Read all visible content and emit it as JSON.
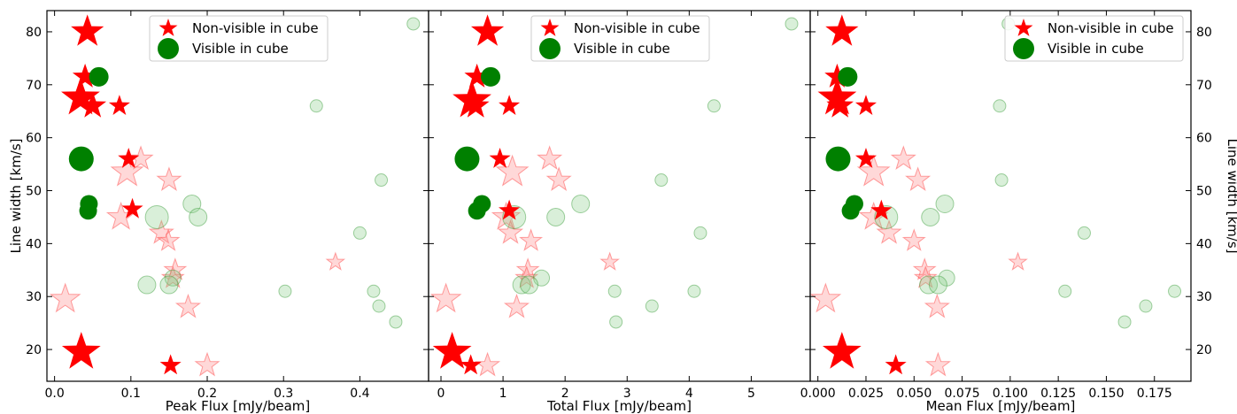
{
  "chart_data": [
    {
      "type": "scatter",
      "xlabel": "Peak Flux [mJy/beam]",
      "ylabel": "Line width [km/s]",
      "xlim": [
        -0.01,
        0.49
      ],
      "ylim": [
        14,
        84
      ],
      "xticks": [
        0.0,
        0.1,
        0.2,
        0.3,
        0.4
      ],
      "xtick_labels": [
        "0.0",
        "0.1",
        "0.2",
        "0.3",
        "0.4"
      ],
      "yticks": [
        20,
        30,
        40,
        50,
        60,
        70,
        80
      ],
      "ytick_labels": [
        "20",
        "30",
        "40",
        "50",
        "60",
        "70",
        "80"
      ],
      "legend": {
        "position": "top-center",
        "entries": [
          "Non-visible in cube",
          "Visible in cube"
        ]
      },
      "series": [
        {
          "name": "Non-visible in cube",
          "marker": "star",
          "color": "#ff0000",
          "x": [
            0.043,
            0.04,
            0.034,
            0.05,
            0.085,
            0.097,
            0.102,
            0.035,
            0.152
          ],
          "y": [
            80,
            71.5,
            67.5,
            66,
            66,
            56,
            46.5,
            19.5,
            17
          ],
          "size": [
            17,
            13,
            20,
            14,
            11,
            11,
            11,
            20,
            11
          ]
        },
        {
          "name": "Visible in cube",
          "marker": "circle",
          "color": "#008000",
          "x": [
            0.058,
            0.035,
            0.045,
            0.044
          ],
          "y": [
            71.5,
            56,
            47.5,
            46.2
          ],
          "size": [
            11,
            14,
            10,
            10
          ]
        },
        {
          "name": "",
          "marker": "star",
          "color": "#ff9999",
          "faded": true,
          "x": [
            0.113,
            0.095,
            0.15,
            0.087,
            0.14,
            0.149,
            0.158,
            0.155,
            0.014,
            0.175,
            0.2,
            0.368
          ],
          "y": [
            56,
            53.5,
            52,
            45,
            42,
            40.5,
            35,
            33.5,
            29.5,
            28,
            17,
            36.5
          ],
          "size": [
            12,
            16,
            12,
            14,
            12,
            11,
            11,
            11,
            15,
            12,
            12,
            9
          ]
        },
        {
          "name": "",
          "marker": "circle",
          "color": "#88cc88",
          "faded": true,
          "x": [
            0.47,
            0.343,
            0.428,
            0.18,
            0.188,
            0.134,
            0.4,
            0.155,
            0.121,
            0.15,
            0.302,
            0.418,
            0.425,
            0.447
          ],
          "y": [
            81.5,
            66,
            52,
            47.5,
            45,
            45,
            42,
            33.5,
            32.2,
            32.2,
            31,
            31,
            28.2,
            25.2
          ],
          "size": [
            7,
            7,
            7,
            10,
            10,
            13,
            7,
            9,
            10,
            10,
            7,
            7,
            7,
            7
          ]
        }
      ]
    },
    {
      "type": "scatter",
      "xlabel": "Total Flux [mJy/beam]",
      "ylabel": "",
      "xlim": [
        -0.2,
        5.95
      ],
      "ylim": [
        14,
        84
      ],
      "xticks": [
        0,
        1,
        2,
        3,
        4,
        5
      ],
      "xtick_labels": [
        "0",
        "1",
        "2",
        "3",
        "4",
        "5"
      ],
      "legend": {
        "position": "top-center",
        "entries": [
          "Non-visible in cube",
          "Visible in cube"
        ]
      },
      "series": [
        {
          "name": "Non-visible in cube",
          "marker": "star",
          "color": "#ff0000",
          "x": [
            0.75,
            0.58,
            0.5,
            0.56,
            1.1,
            0.95,
            1.1,
            0.18,
            0.48
          ],
          "y": [
            80,
            71.5,
            67,
            66,
            66,
            56,
            46.2,
            19.5,
            17
          ],
          "size": [
            17,
            13,
            20,
            14,
            11,
            11,
            11,
            20,
            11
          ]
        },
        {
          "name": "Visible in cube",
          "marker": "circle",
          "color": "#008000",
          "x": [
            0.8,
            0.42,
            0.66,
            0.58
          ],
          "y": [
            71.5,
            56,
            47.5,
            46.2
          ],
          "size": [
            11,
            14,
            10,
            10
          ]
        },
        {
          "name": "",
          "marker": "star",
          "color": "#ff9999",
          "faded": true,
          "x": [
            1.75,
            1.15,
            1.9,
            1.05,
            1.12,
            1.45,
            1.4,
            1.38,
            0.08,
            1.22,
            0.75,
            2.72
          ],
          "y": [
            56,
            53.5,
            52,
            45,
            42,
            40.5,
            35,
            33.5,
            29.5,
            28,
            17,
            36.5
          ],
          "size": [
            12,
            16,
            12,
            14,
            12,
            11,
            11,
            11,
            15,
            12,
            12,
            9
          ]
        },
        {
          "name": "",
          "marker": "circle",
          "color": "#88cc88",
          "faded": true,
          "x": [
            5.65,
            4.4,
            3.55,
            2.25,
            1.85,
            1.18,
            4.18,
            1.62,
            1.3,
            1.42,
            2.8,
            4.08,
            3.4,
            2.82
          ],
          "y": [
            81.5,
            66,
            52,
            47.5,
            45,
            45,
            42,
            33.5,
            32.2,
            32.2,
            31,
            31,
            28.2,
            25.2
          ],
          "size": [
            7,
            7,
            7,
            10,
            10,
            13,
            7,
            9,
            10,
            10,
            7,
            7,
            7,
            7
          ]
        }
      ]
    },
    {
      "type": "scatter",
      "xlabel": "Mean Flux [mJy/beam]",
      "ylabel": "Line width [km/s]",
      "xlim": [
        -0.004,
        0.194
      ],
      "ylim": [
        14,
        84
      ],
      "xticks": [
        0.0,
        0.025,
        0.05,
        0.075,
        0.1,
        0.125,
        0.15,
        0.175
      ],
      "xtick_labels": [
        "0.000",
        "0.025",
        "0.050",
        "0.075",
        "0.100",
        "0.125",
        "0.150",
        "0.175"
      ],
      "yticks": [
        20,
        30,
        40,
        50,
        60,
        70,
        80
      ],
      "ytick_labels": [
        "20",
        "30",
        "40",
        "50",
        "60",
        "70",
        "80"
      ],
      "legend": {
        "position": "top-right",
        "entries": [
          "Non-visible in cube",
          "Visible in cube"
        ]
      },
      "series": [
        {
          "name": "Non-visible in cube",
          "marker": "star",
          "color": "#ff0000",
          "x": [
            0.0125,
            0.01,
            0.01,
            0.0115,
            0.025,
            0.025,
            0.033,
            0.0125,
            0.0405
          ],
          "y": [
            80,
            71.5,
            67.5,
            66,
            66,
            56,
            46.2,
            19.5,
            17
          ],
          "size": [
            17,
            13,
            20,
            14,
            11,
            11,
            11,
            20,
            11
          ]
        },
        {
          "name": "Visible in cube",
          "marker": "circle",
          "color": "#008000",
          "x": [
            0.0155,
            0.0105,
            0.019,
            0.017
          ],
          "y": [
            71.5,
            56,
            47.5,
            46.2
          ],
          "size": [
            11,
            14,
            10,
            10
          ]
        },
        {
          "name": "",
          "marker": "star",
          "color": "#ff9999",
          "faded": true,
          "x": [
            0.0445,
            0.029,
            0.052,
            0.029,
            0.037,
            0.05,
            0.0555,
            0.056,
            0.004,
            0.062,
            0.0625,
            0.104
          ],
          "y": [
            56,
            53.5,
            52,
            45,
            42,
            40.5,
            35,
            33.5,
            29.5,
            28,
            17,
            36.5
          ],
          "size": [
            12,
            16,
            12,
            14,
            12,
            11,
            11,
            11,
            15,
            12,
            12,
            9
          ]
        },
        {
          "name": "",
          "marker": "circle",
          "color": "#88cc88",
          "faded": true,
          "x": [
            0.099,
            0.0945,
            0.0955,
            0.066,
            0.0585,
            0.0355,
            0.1385,
            0.067,
            0.0575,
            0.0625,
            0.1285,
            0.1855,
            0.1705,
            0.1595
          ],
          "y": [
            81.5,
            66,
            52,
            47.5,
            45,
            45,
            42,
            33.5,
            32.2,
            32.2,
            31,
            31,
            28.2,
            25.2
          ],
          "size": [
            7,
            7,
            7,
            10,
            10,
            13,
            7,
            9,
            10,
            10,
            7,
            7,
            7,
            7
          ]
        }
      ]
    }
  ]
}
